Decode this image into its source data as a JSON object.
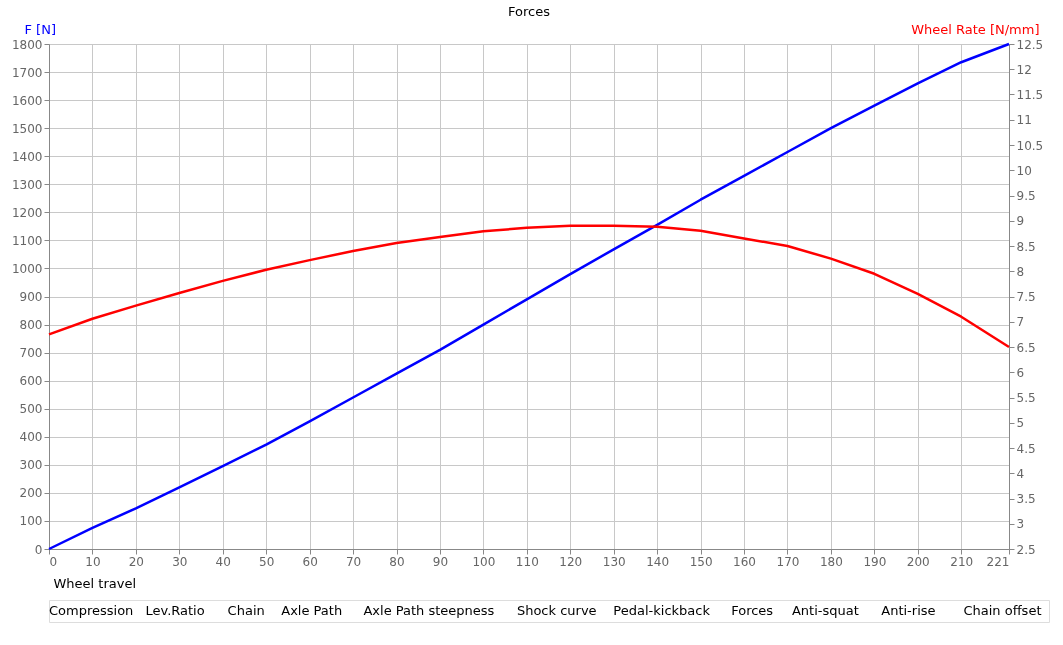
{
  "chart_data": {
    "type": "line",
    "title": "Forces",
    "xlabel": "Wheel travel",
    "ylabel": "F [N]",
    "y2label": "Wheel Rate [N/mm]",
    "x": [
      0,
      10,
      20,
      30,
      40,
      50,
      60,
      70,
      80,
      90,
      100,
      110,
      120,
      130,
      140,
      150,
      160,
      170,
      180,
      190,
      200,
      210,
      221
    ],
    "series": [
      {
        "color": "#0000ff",
        "values": [
          0,
          75,
          145,
          220,
          295,
          372,
          455,
          540,
          625,
          710,
          800,
          890,
          980,
          1068,
          1155,
          1245,
          1330,
          1415,
          1500,
          1580,
          1660,
          1735,
          1800
        ]
      },
      {
        "color": "#ff0000",
        "axis": "y2",
        "values": [
          6.75,
          7.06,
          7.32,
          7.57,
          7.81,
          8.03,
          8.22,
          8.4,
          8.56,
          8.68,
          8.79,
          8.86,
          8.9,
          8.9,
          8.88,
          8.8,
          8.65,
          8.5,
          8.25,
          7.95,
          7.55,
          7.1,
          6.5
        ]
      }
    ],
    "xlim": [
      0,
      221
    ],
    "xticks": [
      0,
      10,
      20,
      30,
      40,
      50,
      60,
      70,
      80,
      90,
      100,
      110,
      120,
      130,
      140,
      150,
      160,
      170,
      180,
      190,
      200,
      210,
      221
    ],
    "ylim": [
      0,
      1800
    ],
    "yticks": [
      0,
      100,
      200,
      300,
      400,
      500,
      600,
      700,
      800,
      900,
      1000,
      1100,
      1200,
      1300,
      1400,
      1500,
      1600,
      1700,
      1800
    ],
    "y2lim": [
      2.5,
      12.5
    ],
    "y2ticks": [
      2.5,
      3,
      3.5,
      4,
      4.5,
      5,
      5.5,
      6,
      6.5,
      7,
      7.5,
      8,
      8.5,
      9,
      9.5,
      10,
      10.5,
      11,
      11.5,
      12,
      12.5
    ],
    "grid": true,
    "marker": "none",
    "line_style": "solid",
    "annotations": [
      "Compression",
      "Lev.Ratio",
      "Chain",
      "Axle Path",
      "Axle Path steepness",
      "Shock curve",
      "Pedal-kickback",
      "Forces",
      "Anti-squat",
      "Anti-rise",
      "Chain offset"
    ]
  }
}
